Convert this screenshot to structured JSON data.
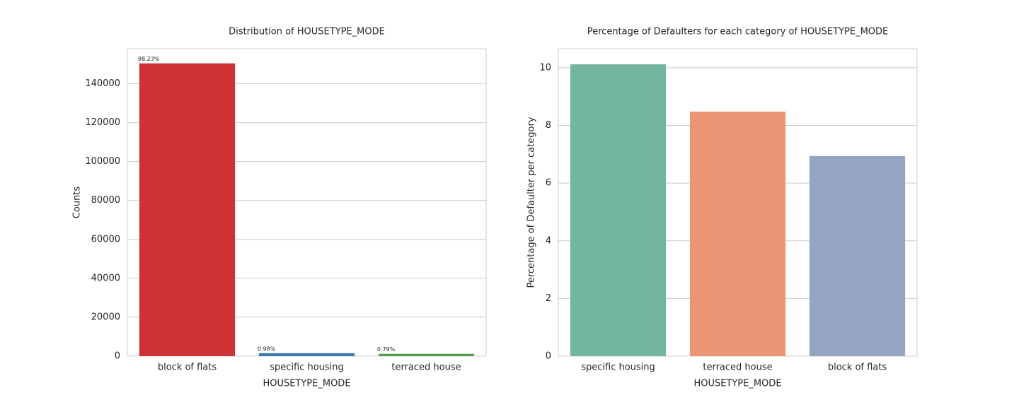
{
  "chart_data": [
    {
      "type": "bar",
      "title": "Distribution of HOUSETYPE_MODE",
      "x_label": "HOUSETYPE_MODE",
      "y_label": "Counts",
      "categories": [
        "block of flats",
        "specific housing",
        "terraced house"
      ],
      "values": [
        150500,
        1501,
        1210
      ],
      "colors": [
        "#ce3234",
        "#3b77af",
        "#50a14e"
      ],
      "shares": [
        98.23,
        0.98,
        0.79
      ],
      "share_labels": [
        "98.23%",
        "0.98%",
        "0.79%"
      ],
      "ylim": [
        0,
        158000
      ],
      "yticks": [
        0,
        20000,
        40000,
        60000,
        80000,
        100000,
        120000,
        140000
      ],
      "grid": true
    },
    {
      "type": "bar",
      "title": "Percentage of Defaulters for each category of HOUSETYPE_MODE",
      "x_label": "HOUSETYPE_MODE",
      "y_label": "Percentage of Defaulter per category",
      "categories": [
        "specific housing",
        "terraced house",
        "block of flats"
      ],
      "values": [
        10.12,
        8.48,
        6.94
      ],
      "colors": [
        "#72b5a0",
        "#e89674",
        "#95a4c3"
      ],
      "ylim": [
        0,
        10.66
      ],
      "yticks": [
        0,
        2,
        4,
        6,
        8,
        10
      ],
      "grid": true
    }
  ]
}
